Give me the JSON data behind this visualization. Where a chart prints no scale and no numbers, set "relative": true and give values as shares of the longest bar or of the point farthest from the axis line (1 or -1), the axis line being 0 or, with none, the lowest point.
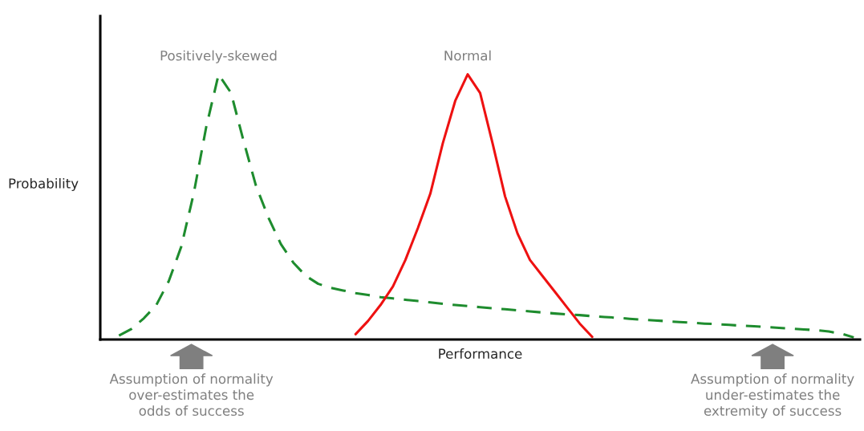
{
  "chart_data": {
    "type": "line",
    "relative": true,
    "xlabel": "Performance",
    "ylabel": "Probability",
    "categories": [
      null,
      null,
      null,
      null,
      null,
      null,
      null,
      null,
      null,
      null,
      null,
      null,
      null,
      null,
      null,
      null,
      null,
      null,
      null,
      null,
      null,
      null,
      null,
      null,
      null,
      null,
      null,
      null,
      null,
      null,
      null,
      null,
      null,
      null,
      null,
      null,
      null,
      null,
      null,
      null,
      null,
      null,
      null,
      null,
      null,
      null,
      null,
      null,
      null,
      null,
      null,
      null,
      null,
      null,
      null,
      null,
      null,
      null,
      null,
      null,
      null
    ],
    "series": [
      {
        "name": "Positively-skewed",
        "color": "#1e8c2e",
        "line_style": "dashed",
        "values": [
          null,
          0.015,
          0.04,
          0.08,
          0.13,
          0.22,
          0.35,
          0.55,
          0.8,
          1.0,
          0.93,
          0.75,
          0.58,
          0.46,
          0.36,
          0.29,
          0.24,
          0.21,
          0.195,
          0.185,
          0.175,
          0.168,
          0.16,
          0.155,
          0.15,
          0.145,
          0.14,
          0.135,
          0.13,
          0.126,
          0.122,
          0.118,
          0.114,
          0.11,
          0.106,
          0.102,
          0.098,
          0.095,
          0.092,
          0.088,
          0.085,
          0.082,
          0.078,
          0.075,
          0.072,
          0.069,
          0.066,
          0.063,
          0.06,
          0.058,
          0.055,
          0.052,
          0.05,
          0.047,
          0.044,
          0.041,
          0.038,
          0.035,
          0.03,
          0.022,
          0.008
        ]
      },
      {
        "name": "Normal",
        "color": "#ee1111",
        "line_style": "solid",
        "values": [
          null,
          null,
          null,
          null,
          null,
          null,
          null,
          null,
          null,
          null,
          null,
          null,
          null,
          null,
          null,
          null,
          null,
          null,
          null,
          null,
          0.02,
          0.07,
          0.13,
          0.2,
          0.3,
          0.42,
          0.55,
          0.74,
          0.9,
          1.0,
          0.93,
          0.74,
          0.54,
          0.4,
          0.3,
          0.24,
          0.18,
          0.12,
          0.06,
          0.01,
          null,
          null,
          null,
          null,
          null,
          null,
          null,
          null,
          null,
          null,
          null,
          null,
          null,
          null,
          null,
          null,
          null,
          null,
          null,
          null,
          null
        ]
      }
    ],
    "annotations": [
      "Assumption of normality\nover-estimates the\nodds of success",
      "Assumption of normality\nunder-estimates the\nextremity of success"
    ],
    "legend": false,
    "tick_labels": false
  }
}
